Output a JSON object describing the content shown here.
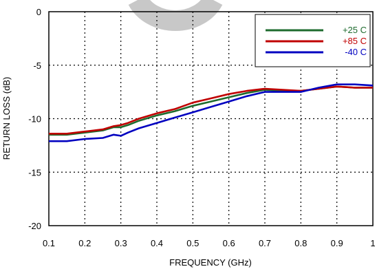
{
  "chart_data": {
    "type": "line",
    "xlabel": "FREQUENCY (GHz)",
    "ylabel": "RETURN LOSS (dB)",
    "xlim": [
      0.1,
      1.0
    ],
    "ylim": [
      -20,
      0
    ],
    "x_ticks": [
      0.1,
      0.2,
      0.3,
      0.4,
      0.5,
      0.6,
      0.7,
      0.8,
      0.9,
      1
    ],
    "x_tick_labels": [
      "0.1",
      "0.2",
      "0.3",
      "0.4",
      "0.5",
      "0.6",
      "0.7",
      "0.8",
      "0.9",
      "1"
    ],
    "y_ticks": [
      0,
      -5,
      -10,
      -15,
      -20
    ],
    "y_tick_labels": [
      "0",
      "-5",
      "-10",
      "-15",
      "-20"
    ],
    "grid": "dotted",
    "legend_position": "top-right",
    "watermark_color": "#c8c8c8",
    "series": [
      {
        "name": "+25 C",
        "color": "#1e6b2e",
        "x": [
          0.1,
          0.15,
          0.2,
          0.25,
          0.28,
          0.3,
          0.32,
          0.35,
          0.4,
          0.45,
          0.5,
          0.55,
          0.6,
          0.65,
          0.7,
          0.75,
          0.8,
          0.85,
          0.9,
          0.95,
          1.0
        ],
        "y": [
          -11.5,
          -11.5,
          -11.3,
          -11.1,
          -10.8,
          -10.8,
          -10.6,
          -10.2,
          -9.7,
          -9.3,
          -8.8,
          -8.4,
          -8.0,
          -7.6,
          -7.3,
          -7.4,
          -7.4,
          -7.2,
          -7.0,
          -7.1,
          -7.1
        ]
      },
      {
        "name": "+85 C",
        "color": "#c00000",
        "x": [
          0.1,
          0.15,
          0.2,
          0.25,
          0.28,
          0.3,
          0.32,
          0.35,
          0.4,
          0.45,
          0.5,
          0.55,
          0.6,
          0.65,
          0.7,
          0.75,
          0.8,
          0.85,
          0.9,
          0.95,
          1.0
        ],
        "y": [
          -11.4,
          -11.4,
          -11.2,
          -11.0,
          -10.7,
          -10.6,
          -10.4,
          -10.0,
          -9.5,
          -9.1,
          -8.5,
          -8.1,
          -7.7,
          -7.4,
          -7.2,
          -7.3,
          -7.4,
          -7.2,
          -7.0,
          -7.1,
          -7.1
        ]
      },
      {
        "name": "-40 C",
        "color": "#0000c0",
        "x": [
          0.1,
          0.15,
          0.2,
          0.25,
          0.28,
          0.3,
          0.32,
          0.35,
          0.4,
          0.45,
          0.5,
          0.55,
          0.6,
          0.65,
          0.7,
          0.75,
          0.8,
          0.85,
          0.9,
          0.95,
          1.0
        ],
        "y": [
          -12.1,
          -12.1,
          -11.9,
          -11.8,
          -11.5,
          -11.6,
          -11.3,
          -10.9,
          -10.4,
          -9.9,
          -9.4,
          -8.9,
          -8.4,
          -7.9,
          -7.5,
          -7.5,
          -7.5,
          -7.1,
          -6.8,
          -6.8,
          -6.9
        ]
      }
    ]
  }
}
